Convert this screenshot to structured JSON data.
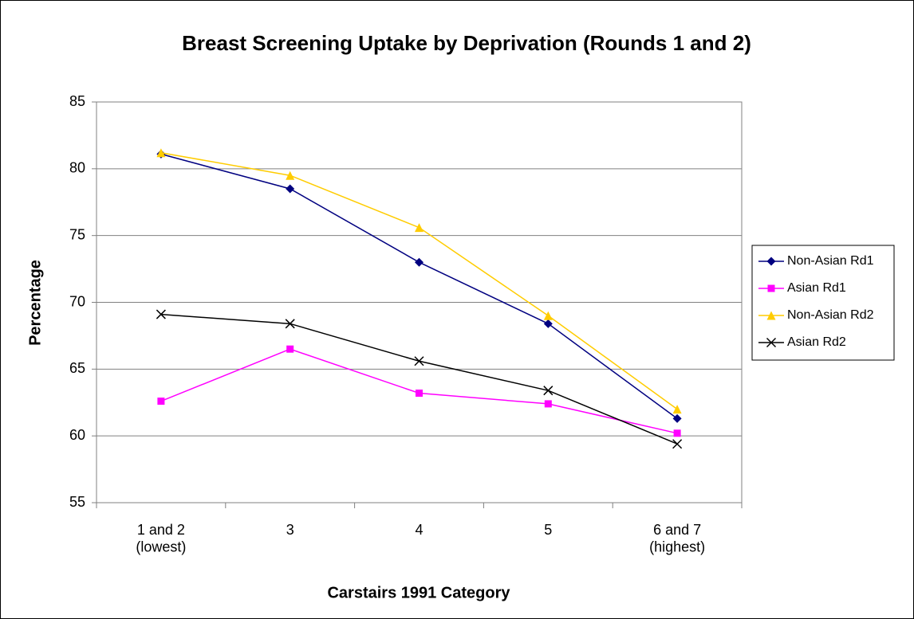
{
  "chart_data": {
    "type": "line",
    "title": "Breast Screening Uptake by Deprivation (Rounds 1 and 2)",
    "x_label": "Carstairs 1991 Category",
    "y_label": "Percentage",
    "categories": [
      "1 and 2\n(lowest)",
      "3",
      "4",
      "5",
      "6 and 7\n(highest)"
    ],
    "series": [
      {
        "name": "Non-Asian Rd1",
        "color": "#000080",
        "marker": "diamond",
        "values": [
          81.1,
          78.5,
          73.0,
          68.4,
          61.3
        ]
      },
      {
        "name": "Asian Rd1",
        "color": "#ff00ff",
        "marker": "square",
        "values": [
          62.6,
          66.5,
          63.2,
          62.4,
          60.2
        ]
      },
      {
        "name": "Non-Asian Rd2",
        "color": "#ffcc00",
        "marker": "triangle",
        "values": [
          81.2,
          79.5,
          75.6,
          69.0,
          62.0
        ]
      },
      {
        "name": "Asian Rd2",
        "color": "#000000",
        "marker": "x",
        "values": [
          69.1,
          68.4,
          65.6,
          63.4,
          59.4
        ]
      }
    ],
    "ylim": [
      55,
      85
    ],
    "yticks": [
      55,
      60,
      65,
      70,
      75,
      80,
      85
    ],
    "grid": true,
    "legend": "right"
  }
}
